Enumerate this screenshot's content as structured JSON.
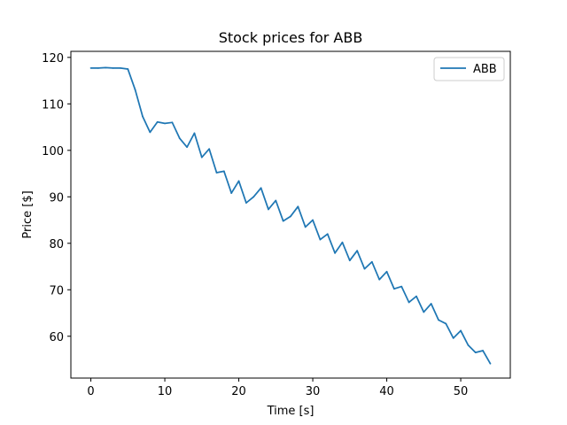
{
  "chart_data": {
    "type": "line",
    "title": "Stock prices for ABB",
    "xlabel": "Time [s]",
    "ylabel": "Price [$]",
    "xlim": [
      -2.7,
      56.7
    ],
    "ylim": [
      51.0,
      121.3
    ],
    "xticks": [
      0,
      10,
      20,
      30,
      40,
      50
    ],
    "yticks": [
      60,
      70,
      80,
      90,
      100,
      110,
      120
    ],
    "grid": false,
    "legend_position": "top-right",
    "series": [
      {
        "name": "ABB",
        "color": "#1f77b4",
        "x": [
          0,
          1,
          2,
          3,
          4,
          5,
          6,
          7,
          8,
          9,
          10,
          11,
          12,
          13,
          14,
          15,
          16,
          17,
          18,
          19,
          20,
          21,
          22,
          23,
          24,
          25,
          26,
          27,
          28,
          29,
          30,
          31,
          32,
          33,
          34,
          35,
          36,
          37,
          38,
          39,
          40,
          41,
          42,
          43,
          44,
          45,
          46,
          47,
          48,
          49,
          50,
          51,
          52,
          53,
          54
        ],
        "values": [
          117.7,
          117.7,
          117.8,
          117.7,
          117.7,
          117.5,
          113.0,
          107.3,
          103.9,
          106.1,
          105.8,
          106.0,
          102.6,
          100.7,
          103.7,
          98.5,
          100.3,
          95.2,
          95.5,
          90.8,
          93.4,
          88.7,
          90.0,
          91.9,
          87.3,
          89.2,
          84.8,
          85.8,
          87.9,
          83.5,
          85.0,
          80.8,
          82.0,
          77.9,
          80.2,
          76.3,
          78.4,
          74.5,
          76.0,
          72.2,
          73.9,
          70.2,
          70.7,
          67.3,
          68.6,
          65.2,
          67.0,
          63.5,
          62.7,
          59.6,
          61.2,
          58.1,
          56.5,
          56.9,
          54.1
        ]
      }
    ]
  }
}
